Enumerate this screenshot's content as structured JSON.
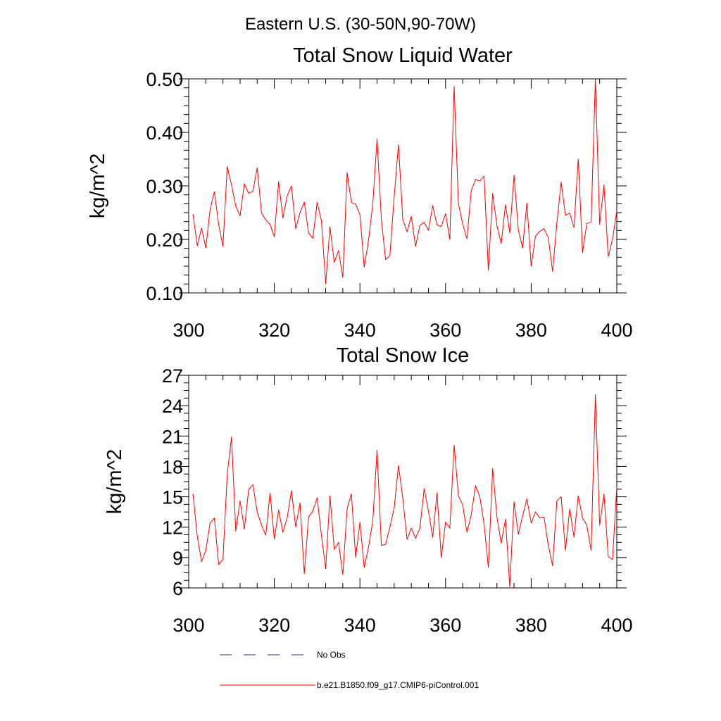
{
  "figure_title": "Eastern U.S. (30-50N,90-70W)",
  "chart_data": [
    {
      "type": "line",
      "title": "Total Snow Liquid Water",
      "xlabel": "",
      "ylabel": "kg/m^2",
      "xlim": [
        300,
        400
      ],
      "ylim": [
        0.1,
        0.5
      ],
      "xticks": [
        300,
        320,
        340,
        360,
        380,
        400
      ],
      "xtick_labels": [
        "300",
        "320",
        "340",
        "360",
        "380",
        "400"
      ],
      "yticks": [
        0.1,
        0.2,
        0.3,
        0.4,
        0.5
      ],
      "ytick_labels": [
        "0.10",
        "0.20",
        "0.30",
        "0.40",
        "0.50"
      ],
      "series": [
        {
          "name": "b.e21.B1850.f09_g17.CMIP6-piControl.001",
          "color": "#ff0000",
          "x_start": 301,
          "x_step": 1,
          "values": [
            0.247,
            0.188,
            0.221,
            0.184,
            0.256,
            0.289,
            0.228,
            0.187,
            0.336,
            0.302,
            0.262,
            0.244,
            0.304,
            0.286,
            0.29,
            0.334,
            0.25,
            0.236,
            0.228,
            0.205,
            0.308,
            0.24,
            0.281,
            0.3,
            0.22,
            0.25,
            0.27,
            0.212,
            0.202,
            0.269,
            0.235,
            0.117,
            0.223,
            0.157,
            0.179,
            0.129,
            0.325,
            0.269,
            0.266,
            0.246,
            0.148,
            0.198,
            0.266,
            0.388,
            0.238,
            0.162,
            0.17,
            0.28,
            0.377,
            0.238,
            0.214,
            0.243,
            0.187,
            0.226,
            0.232,
            0.217,
            0.263,
            0.227,
            0.224,
            0.248,
            0.2,
            0.486,
            0.267,
            0.229,
            0.201,
            0.291,
            0.312,
            0.309,
            0.318,
            0.142,
            0.286,
            0.226,
            0.192,
            0.265,
            0.212,
            0.32,
            0.217,
            0.184,
            0.268,
            0.15,
            0.206,
            0.215,
            0.22,
            0.203,
            0.14,
            0.23,
            0.307,
            0.245,
            0.249,
            0.222,
            0.35,
            0.175,
            0.23,
            0.232,
            0.5,
            0.228,
            0.302,
            0.168,
            0.2,
            0.253
          ]
        }
      ]
    },
    {
      "type": "line",
      "title": "Total Snow Ice",
      "xlabel": "",
      "ylabel": "kg/m^2",
      "xlim": [
        300,
        400
      ],
      "ylim": [
        6,
        27
      ],
      "xticks": [
        300,
        320,
        340,
        360,
        380,
        400
      ],
      "xtick_labels": [
        "300",
        "320",
        "340",
        "360",
        "380",
        "400"
      ],
      "yticks": [
        6,
        9,
        12,
        15,
        18,
        21,
        24,
        27
      ],
      "ytick_labels": [
        "6",
        "9",
        "12",
        "15",
        "18",
        "21",
        "24",
        "27"
      ],
      "series": [
        {
          "name": "b.e21.B1850.f09_g17.CMIP6-piControl.001",
          "color": "#ff0000",
          "x_start": 301,
          "x_step": 1,
          "values": [
            15.3,
            11.1,
            8.6,
            9.7,
            12.4,
            12.9,
            8.3,
            8.8,
            17.2,
            20.9,
            11.6,
            14.6,
            11.8,
            15.7,
            16.2,
            13.5,
            12.2,
            11.2,
            15.4,
            10.8,
            13.7,
            11.5,
            12.9,
            15.6,
            12.0,
            14.4,
            7.4,
            13.0,
            13.6,
            14.9,
            11.2,
            7.9,
            15.1,
            9.8,
            10.5,
            7.3,
            13.8,
            15.3,
            9.0,
            12.5,
            8.0,
            10.0,
            12.6,
            19.6,
            10.2,
            10.3,
            12.0,
            13.9,
            18.1,
            14.9,
            10.8,
            11.9,
            10.9,
            11.9,
            15.8,
            13.6,
            11.0,
            15.4,
            9.0,
            12.5,
            11.9,
            20.1,
            15.1,
            14.2,
            11.5,
            13.2,
            16.1,
            15.0,
            12.3,
            8.0,
            17.8,
            13.0,
            10.4,
            12.8,
            6.1,
            14.5,
            11.3,
            13.1,
            14.8,
            12.4,
            13.5,
            12.9,
            13.0,
            10.2,
            8.2,
            14.6,
            15.0,
            9.7,
            13.8,
            11.0,
            15.1,
            12.9,
            12.2,
            9.7,
            25.1,
            12.2,
            15.3,
            9.1,
            8.8,
            16.0
          ]
        }
      ]
    }
  ],
  "legend": [
    {
      "label": "No Obs",
      "color": "#2e3a87",
      "style": "dashed"
    },
    {
      "label": "b.e21.B1850.f09_g17.CMIP6-piControl.001",
      "color": "#ff0000",
      "style": "solid"
    }
  ]
}
